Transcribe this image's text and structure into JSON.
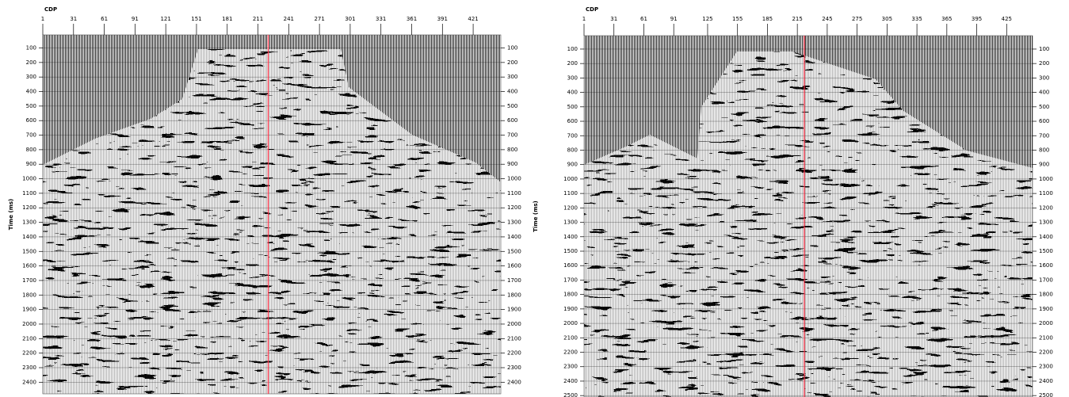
{
  "chart_data": [
    {
      "type": "seismic",
      "x_label": "CDP",
      "y_label": "Time (ms)",
      "xlim": [
        1,
        448
      ],
      "xticks": [
        1,
        31,
        61,
        91,
        121,
        151,
        181,
        211,
        241,
        271,
        301,
        331,
        361,
        391,
        421
      ],
      "ylim": [
        10,
        2480
      ],
      "yticks": [
        100,
        200,
        300,
        400,
        500,
        600,
        700,
        800,
        900,
        1000,
        1100,
        1200,
        1300,
        1400,
        1500,
        1600,
        1700,
        1800,
        1900,
        2000,
        2100,
        2200,
        2300,
        2400
      ],
      "marker_x": 221,
      "marker_color": "#e8283c"
    },
    {
      "type": "seismic",
      "x_label": "CDP",
      "y_label": "Time (ms)",
      "xlim": [
        1,
        451
      ],
      "xticks": [
        1,
        31,
        61,
        91,
        125,
        155,
        185,
        215,
        245,
        275,
        305,
        335,
        365,
        395,
        425
      ],
      "ylim": [
        7,
        2510
      ],
      "yticks": [
        100,
        200,
        300,
        400,
        500,
        600,
        700,
        800,
        900,
        1000,
        1100,
        1200,
        1300,
        1400,
        1500,
        1600,
        1700,
        1800,
        1900,
        2000,
        2100,
        2200,
        2300,
        2400,
        2500
      ],
      "marker_x": 222,
      "marker_color": "#e8283c"
    }
  ]
}
